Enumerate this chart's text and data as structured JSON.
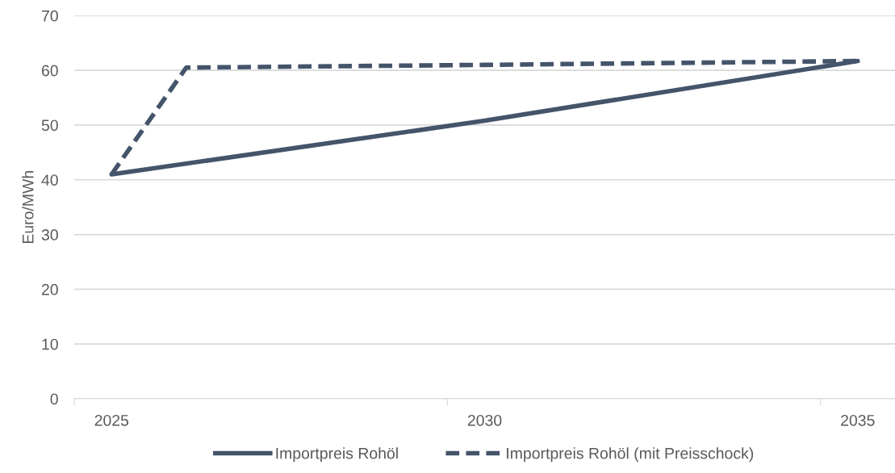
{
  "chart_data": {
    "type": "line",
    "ylabel": "Euro/MWh",
    "series": [
      {
        "name": "Importpreis Rohöl",
        "color": "#44546a",
        "line_style": "solid",
        "x": [
          2025,
          2030,
          2035
        ],
        "values": [
          41.0,
          50.8,
          61.7
        ]
      },
      {
        "name": "Importpreis Rohöl (mit Preisschock)",
        "color": "#44546a",
        "line_style": "dashed",
        "x": [
          2025,
          2026,
          2030,
          2035
        ],
        "values": [
          41.0,
          60.5,
          61.0,
          61.7
        ]
      }
    ],
    "xlim": [
      2024.5,
      2035.5
    ],
    "xticks": [
      {
        "value": 2024.5,
        "label": null
      },
      2025,
      {
        "value": 2029.5,
        "label": null
      },
      2030,
      {
        "value": 2034.5,
        "label": null
      },
      2035
    ],
    "ylim": [
      0,
      70
    ],
    "yticks": [
      0,
      10,
      20,
      30,
      40,
      50,
      60,
      70
    ],
    "grid": "y",
    "legend": "bottom",
    "marker": "none"
  }
}
